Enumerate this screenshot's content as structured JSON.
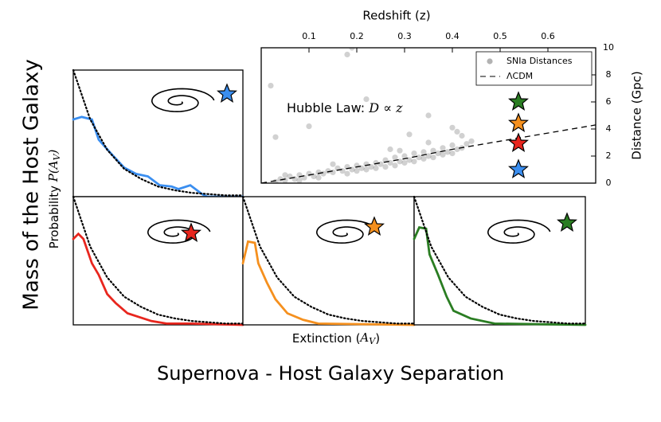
{
  "figure": {
    "ylabel": "Mass of the Host Galaxy",
    "xlabel": "Supernova - Host Galaxy Separation",
    "panel_ylabel": [
      "Probability ",
      "P(A",
      "V",
      ")"
    ],
    "panel_xlabel": [
      "Extinction (",
      "A",
      "V",
      ")"
    ]
  },
  "chart_data": [
    {
      "type": "scatter",
      "xlabel": "Redshift (z)",
      "ylabel": "Distance (Gpc)",
      "annotation": [
        "Hubble Law: ",
        "D ∝ z"
      ],
      "xlim": [
        0,
        0.7
      ],
      "xticks": [
        0.1,
        0.2,
        0.3,
        0.4,
        0.5,
        0.6
      ],
      "ylim": [
        0,
        10
      ],
      "yticks": [
        0,
        2,
        4,
        6,
        8,
        10
      ],
      "legend": "upper right",
      "series": [
        {
          "name": "SNIa Distances",
          "type": "scatter",
          "color": "#000000",
          "x": [
            0.03,
            0.04,
            0.05,
            0.06,
            0.07,
            0.08,
            0.09,
            0.1,
            0.11,
            0.12,
            0.13,
            0.14,
            0.15,
            0.16,
            0.17,
            0.18,
            0.19,
            0.2,
            0.21,
            0.22,
            0.23,
            0.24,
            0.25,
            0.26,
            0.27,
            0.28,
            0.29,
            0.3,
            0.31,
            0.32,
            0.33,
            0.34,
            0.35,
            0.36,
            0.37,
            0.38,
            0.39,
            0.4,
            0.41,
            0.42,
            0.43,
            0.44,
            0.05,
            0.08,
            0.12,
            0.15,
            0.18,
            0.2,
            0.22,
            0.24,
            0.26,
            0.28,
            0.3,
            0.32,
            0.34,
            0.36,
            0.38,
            0.4,
            0.42,
            0.29,
            0.35,
            0.4,
            0.02,
            0.03,
            0.18,
            0.19,
            0.22,
            0.35,
            0.31,
            0.1,
            0.27,
            0.41
          ],
          "values": [
            0.1,
            0.3,
            0.2,
            0.5,
            0.3,
            0.6,
            0.4,
            0.7,
            0.5,
            0.8,
            0.7,
            0.9,
            0.8,
            1.1,
            0.9,
            1.2,
            1.0,
            1.3,
            1.1,
            1.4,
            1.2,
            1.5,
            1.4,
            1.7,
            1.5,
            1.9,
            1.6,
            2.0,
            1.7,
            2.2,
            1.9,
            2.3,
            2.0,
            2.4,
            2.2,
            2.6,
            2.3,
            2.8,
            2.5,
            3.5,
            2.9,
            3.1,
            0.6,
            0.2,
            0.4,
            1.4,
            0.7,
            0.9,
            1.0,
            1.1,
            1.2,
            1.3,
            1.5,
            1.6,
            1.8,
            1.9,
            2.1,
            2.2,
            2.6,
            2.4,
            3.0,
            4.1,
            7.2,
            3.4,
            9.5,
            10,
            6.2,
            5.0,
            3.6,
            4.2,
            2.5,
            3.8
          ]
        },
        {
          "name": "ΛCDM",
          "type": "line",
          "color": "#000000",
          "dash": true,
          "x": [
            0,
            0.1,
            0.2,
            0.3,
            0.4,
            0.5,
            0.6,
            0.7
          ],
          "values": [
            0,
            0.6,
            1.2,
            1.8,
            2.5,
            3.1,
            3.7,
            4.3
          ]
        }
      ]
    },
    {
      "type": "line",
      "xlim": [
        0,
        1
      ],
      "ylim": [
        0,
        1
      ],
      "series": [
        {
          "color": "#3a8ef0",
          "x": [
            0,
            0.05,
            0.11,
            0.15,
            0.23,
            0.3,
            0.37,
            0.44,
            0.51,
            0.58,
            0.62,
            0.69,
            0.76,
            0.79,
            1.0
          ],
          "values": [
            0.61,
            0.63,
            0.61,
            0.45,
            0.33,
            0.23,
            0.18,
            0.16,
            0.09,
            0.08,
            0.06,
            0.09,
            0.02,
            0,
            0
          ]
        },
        {
          "color": "#000000",
          "dotted": true,
          "x": [
            0,
            0.1,
            0.2,
            0.3,
            0.4,
            0.5,
            0.6,
            0.7,
            0.8,
            0.9,
            1.0
          ],
          "values": [
            1,
            0.61,
            0.37,
            0.22,
            0.14,
            0.08,
            0.05,
            0.03,
            0.02,
            0.01,
            0.01
          ]
        }
      ]
    },
    {
      "type": "line",
      "xlim": [
        0,
        1
      ],
      "ylim": [
        0,
        1
      ],
      "series": [
        {
          "color": "#e8261e",
          "x": [
            0,
            0.03,
            0.06,
            0.11,
            0.15,
            0.2,
            0.25,
            0.32,
            0.39,
            0.46,
            0.55,
            0.69,
            1.0
          ],
          "values": [
            0.67,
            0.71,
            0.67,
            0.48,
            0.39,
            0.24,
            0.17,
            0.09,
            0.06,
            0.03,
            0.01,
            0.01,
            0
          ]
        },
        {
          "color": "#000000",
          "dotted": true,
          "x": [
            0,
            0.1,
            0.2,
            0.3,
            0.4,
            0.5,
            0.6,
            0.7,
            0.8,
            0.9,
            1.0
          ],
          "values": [
            1,
            0.61,
            0.37,
            0.22,
            0.14,
            0.08,
            0.05,
            0.03,
            0.02,
            0.01,
            0.01
          ]
        }
      ]
    },
    {
      "type": "line",
      "xlim": [
        0,
        1
      ],
      "ylim": [
        0,
        1
      ],
      "series": [
        {
          "color": "#f5901e",
          "x": [
            0,
            0.03,
            0.07,
            0.09,
            0.14,
            0.19,
            0.26,
            0.35,
            0.44,
            1.0
          ],
          "values": [
            0.48,
            0.65,
            0.64,
            0.48,
            0.33,
            0.2,
            0.09,
            0.04,
            0.01,
            0
          ]
        },
        {
          "color": "#000000",
          "dotted": true,
          "x": [
            0,
            0.1,
            0.2,
            0.3,
            0.4,
            0.5,
            0.6,
            0.7,
            0.8,
            0.9,
            1.0
          ],
          "values": [
            1,
            0.61,
            0.37,
            0.22,
            0.14,
            0.08,
            0.05,
            0.03,
            0.02,
            0.01,
            0.01
          ]
        }
      ]
    },
    {
      "type": "line",
      "xlim": [
        0,
        1
      ],
      "ylim": [
        0,
        1
      ],
      "series": [
        {
          "color": "#2a7d22",
          "x": [
            0,
            0.03,
            0.07,
            0.09,
            0.14,
            0.19,
            0.23,
            0.33,
            0.47,
            1.0
          ],
          "values": [
            0.67,
            0.76,
            0.75,
            0.55,
            0.39,
            0.22,
            0.11,
            0.05,
            0.01,
            0
          ]
        },
        {
          "color": "#000000",
          "dotted": true,
          "x": [
            0,
            0.1,
            0.2,
            0.3,
            0.4,
            0.5,
            0.6,
            0.7,
            0.8,
            0.9,
            1.0
          ],
          "values": [
            1,
            0.61,
            0.37,
            0.22,
            0.14,
            0.08,
            0.05,
            0.03,
            0.02,
            0.01,
            0.01
          ]
        }
      ]
    }
  ]
}
